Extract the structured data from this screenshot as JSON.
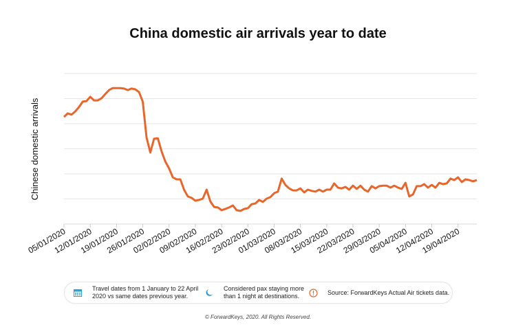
{
  "chart_data": {
    "type": "line",
    "title": "China domestic air arrivals year to date",
    "xlabel": "",
    "ylabel": "Chinese domestic arrivals",
    "ylim": [
      0,
      6
    ],
    "y_units": "relative (gridline units, no tick labels shown)",
    "grid": true,
    "x_start": "05/01/2020",
    "x_ticks": [
      "05/01/2020",
      "12/01/2020",
      "19/01/2020",
      "26/01/2020",
      "02/02/2020",
      "09/02/2020",
      "16/02/2020",
      "23/02/2020",
      "01/03/2020",
      "08/03/2020",
      "15/03/2020",
      "22/03/2020",
      "29/03/2020",
      "05/04/2020",
      "12/04/2020",
      "19/04/2020"
    ],
    "series": [
      {
        "name": "Chinese domestic arrivals",
        "color": "#e8662a",
        "values": [
          4.27,
          4.41,
          4.36,
          4.49,
          4.66,
          4.88,
          4.9,
          5.07,
          4.93,
          4.93,
          5.01,
          5.18,
          5.34,
          5.42,
          5.42,
          5.42,
          5.4,
          5.34,
          5.4,
          5.37,
          5.26,
          4.88,
          3.45,
          2.85,
          3.4,
          3.42,
          2.9,
          2.49,
          2.22,
          1.86,
          1.78,
          1.78,
          1.37,
          1.1,
          1.04,
          0.93,
          0.96,
          1.01,
          1.37,
          0.9,
          0.68,
          0.66,
          0.55,
          0.6,
          0.66,
          0.74,
          0.55,
          0.52,
          0.6,
          0.63,
          0.79,
          0.82,
          0.96,
          0.88,
          1.01,
          1.07,
          1.23,
          1.29,
          1.81,
          1.56,
          1.42,
          1.34,
          1.34,
          1.42,
          1.26,
          1.37,
          1.32,
          1.29,
          1.37,
          1.29,
          1.37,
          1.37,
          1.62,
          1.45,
          1.42,
          1.48,
          1.37,
          1.53,
          1.4,
          1.53,
          1.37,
          1.29,
          1.51,
          1.42,
          1.51,
          1.53,
          1.53,
          1.45,
          1.53,
          1.45,
          1.4,
          1.64,
          1.1,
          1.18,
          1.51,
          1.51,
          1.59,
          1.45,
          1.56,
          1.45,
          1.64,
          1.59,
          1.62,
          1.81,
          1.75,
          1.86,
          1.67,
          1.78,
          1.75,
          1.7,
          1.75
        ]
      }
    ]
  },
  "legend": {
    "items": [
      {
        "icon": "calendar-icon",
        "line1": "Travel dates from 1 January to 22 April",
        "line2": "2020 vs same dates previous year."
      },
      {
        "icon": "moon-icon",
        "line1": "Considered pax staying more",
        "line2": "than 1 night at destinations."
      },
      {
        "icon": "alert-icon",
        "line1": "Source: ForwardKeys Actual Air tickets data."
      }
    ],
    "accent": "#2a9fd8",
    "alert_color": "#e8662a"
  },
  "footer": "© ForwardKeys, 2020. All Rights Reserved."
}
